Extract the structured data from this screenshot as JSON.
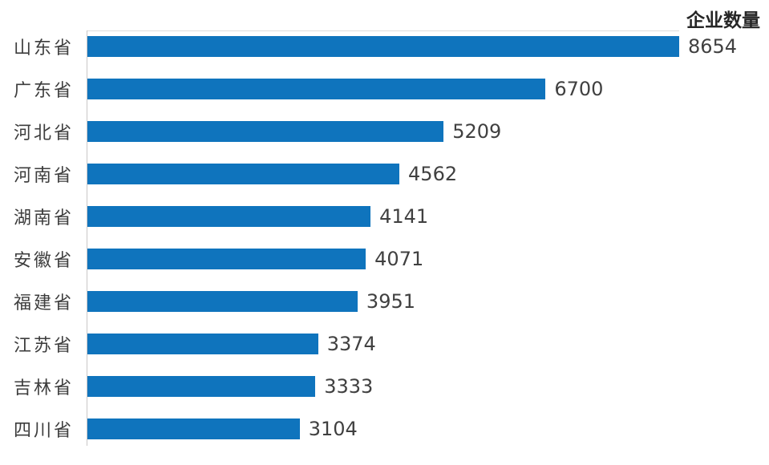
{
  "header": {
    "title": "企业数量"
  },
  "colors": {
    "bar": "#0f74bd",
    "axis_line": "#c9c7c7",
    "plot_top_border": "#dcdcdc",
    "title_text": "#262626",
    "category_text": "#3d3d3d",
    "value_text": "#404040",
    "background": "#ffffff"
  },
  "chart_data": {
    "type": "bar",
    "orientation": "horizontal",
    "title": "企业数量",
    "xlabel": "",
    "ylabel": "",
    "categories": [
      "山东省",
      "广东省",
      "河北省",
      "河南省",
      "湖南省",
      "安徽省",
      "福建省",
      "江苏省",
      "吉林省",
      "四川省"
    ],
    "values": [
      8654,
      6700,
      5209,
      4562,
      4141,
      4071,
      3951,
      3374,
      3333,
      3104
    ],
    "data_labels_shown": true,
    "xlim": [
      0,
      8654
    ],
    "grid": false,
    "legend": "none",
    "sort_order": "descending"
  }
}
